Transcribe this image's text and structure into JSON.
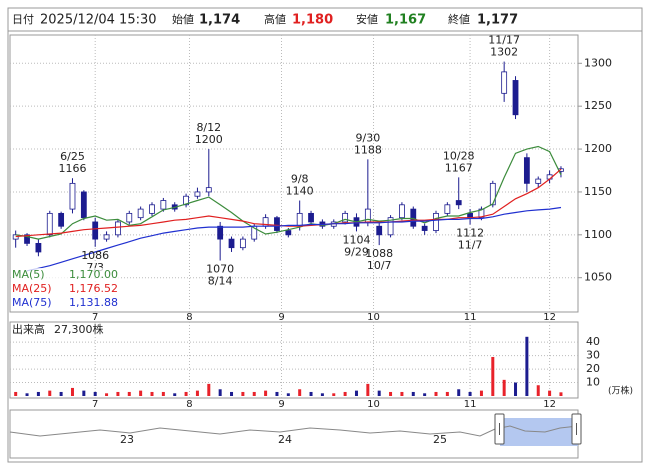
{
  "header": {
    "date_label": "日付",
    "datetime": "2025/12/04 15:30",
    "items": [
      {
        "label": "始値",
        "value": "1,174"
      },
      {
        "label": "高値",
        "value": "1,180"
      },
      {
        "label": "安値",
        "value": "1,167"
      },
      {
        "label": "終値",
        "value": "1,177"
      }
    ]
  },
  "chart_data": [
    {
      "type": "candlestick",
      "categories": [
        null,
        null,
        null,
        null,
        null,
        "6/25",
        null,
        "7/3",
        null,
        null,
        null,
        null,
        null,
        null,
        null,
        null,
        null,
        "8/12",
        "8/14",
        null,
        null,
        null,
        null,
        null,
        null,
        "9/8",
        null,
        null,
        null,
        null,
        "9/29",
        "9/30",
        "10/7",
        null,
        null,
        null,
        null,
        null,
        null,
        "10/28",
        "11/7",
        null,
        null,
        "11/17",
        null,
        null,
        null,
        null,
        null
      ],
      "open": [
        1095,
        1100,
        1090,
        1100,
        1125,
        1130,
        1150,
        1115,
        1095,
        1100,
        1115,
        1120,
        1125,
        1130,
        1135,
        1135,
        1145,
        1150,
        1110,
        1095,
        1085,
        1095,
        1110,
        1120,
        1105,
        1110,
        1125,
        1115,
        1110,
        1115,
        1120,
        1115,
        1110,
        1100,
        1120,
        1130,
        1110,
        1105,
        1125,
        1140,
        1125,
        1120,
        1135,
        1265,
        1280,
        1190,
        1160,
        1165,
        1174
      ],
      "high": [
        1105,
        1102,
        1095,
        1128,
        1127,
        1166,
        1152,
        1120,
        1104,
        1118,
        1128,
        1133,
        1138,
        1143,
        1138,
        1148,
        1155,
        1200,
        1115,
        1098,
        1098,
        1113,
        1124,
        1122,
        1108,
        1140,
        1128,
        1118,
        1118,
        1128,
        1125,
        1188,
        1115,
        1123,
        1138,
        1133,
        1113,
        1128,
        1138,
        1167,
        1130,
        1133,
        1163,
        1302,
        1285,
        1195,
        1168,
        1175,
        1180
      ],
      "low": [
        1085,
        1087,
        1075,
        1097,
        1107,
        1125,
        1117,
        1086,
        1092,
        1097,
        1112,
        1117,
        1122,
        1127,
        1127,
        1132,
        1142,
        1145,
        1070,
        1080,
        1082,
        1092,
        1107,
        1102,
        1097,
        1105,
        1112,
        1107,
        1107,
        1112,
        1104,
        1110,
        1088,
        1097,
        1117,
        1107,
        1100,
        1102,
        1122,
        1130,
        1112,
        1117,
        1132,
        1255,
        1235,
        1150,
        1155,
        1160,
        1167
      ],
      "close": [
        1100,
        1090,
        1080,
        1125,
        1110,
        1160,
        1120,
        1095,
        1100,
        1115,
        1125,
        1130,
        1135,
        1140,
        1130,
        1145,
        1150,
        1155,
        1095,
        1085,
        1095,
        1110,
        1120,
        1105,
        1100,
        1125,
        1115,
        1110,
        1115,
        1125,
        1110,
        1130,
        1100,
        1120,
        1135,
        1110,
        1105,
        1125,
        1135,
        1135,
        1120,
        1130,
        1160,
        1290,
        1240,
        1160,
        1165,
        1170,
        1177
      ],
      "up_color": "#ffffff",
      "down_color": "#1c1c8f",
      "wick_color": "#1c1c8f",
      "series": [
        {
          "name": "MA(5)",
          "color": "#3c8c3c",
          "legend_value": "1,170.00",
          "values": [
            1100,
            1098,
            1095,
            1098,
            1101,
            1113,
            1119,
            1122,
            1117,
            1118,
            1111,
            1113,
            1121,
            1129,
            1132,
            1136,
            1140,
            1144,
            1135,
            1126,
            1116,
            1108,
            1101,
            1103,
            1106,
            1109,
            1113,
            1111,
            1113,
            1118,
            1115,
            1118,
            1116,
            1117,
            1119,
            1119,
            1114,
            1119,
            1122,
            1122,
            1126,
            1129,
            1136,
            1167,
            1195,
            1200,
            1203,
            1197,
            1170
          ]
        },
        {
          "name": "MA(25)",
          "color": "#e02020",
          "legend_value": "1,176.52",
          "values": [
            1098,
            1099,
            1100,
            1101,
            1102,
            1104,
            1106,
            1107,
            1108,
            1109,
            1110,
            1111,
            1113,
            1115,
            1117,
            1118,
            1120,
            1122,
            1120,
            1118,
            1116,
            1113,
            1112,
            1111,
            1110,
            1110,
            1111,
            1112,
            1113,
            1114,
            1114,
            1115,
            1115,
            1115,
            1116,
            1117,
            1117,
            1118,
            1118,
            1120,
            1120,
            1121,
            1124,
            1133,
            1142,
            1148,
            1155,
            1165,
            1176.52
          ]
        },
        {
          "name": "MA(75)",
          "color": "#2030d0",
          "legend_value": "1,131.88",
          "values": [
            null,
            1058,
            1061,
            1064,
            1068,
            1072,
            1076,
            1080,
            1084,
            1088,
            1092,
            1096,
            1099,
            1102,
            1104,
            1106,
            1108,
            1109,
            1109,
            1109,
            1109,
            1110,
            1110,
            1110,
            1111,
            1111,
            1112,
            1112,
            1113,
            1113,
            1114,
            1114,
            1114,
            1115,
            1115,
            1116,
            1116,
            1117,
            1118,
            1118,
            1119,
            1119,
            1121,
            1124,
            1126,
            1128,
            1129,
            1130,
            1131.88
          ]
        }
      ],
      "legend": "lower left",
      "ylim": [
        1010,
        1333
      ],
      "yticks": [
        1050,
        1100,
        1150,
        1200,
        1250,
        1300
      ],
      "xlim": [
        -0.5,
        49.5
      ],
      "xticks": [
        7,
        {
          "value": 15.3,
          "label": "8"
        },
        {
          "value": 23.4,
          "label": "9"
        },
        {
          "value": 31.5,
          "label": "10"
        },
        {
          "value": 40,
          "label": "11"
        },
        {
          "value": 47,
          "label": "12"
        }
      ],
      "grid": true
    },
    {
      "type": "bar",
      "title": "出来高",
      "subtitle": "27,300株",
      "unit_label": "(万株)",
      "values": [
        3,
        2,
        3,
        4,
        3,
        6,
        4,
        3,
        2,
        3,
        3,
        4,
        3,
        3,
        2,
        3,
        4,
        9,
        5,
        3,
        3,
        3,
        4,
        3,
        2,
        5,
        3,
        2,
        2,
        3,
        4,
        9,
        4,
        3,
        3,
        3,
        2,
        3,
        3,
        5,
        3,
        4,
        29,
        12,
        10,
        44,
        8,
        4,
        2.73
      ],
      "up_color": "#e8222a",
      "down_color": "#1c1c8f",
      "ylim": [
        0,
        55
      ],
      "yticks": [
        10,
        20,
        30,
        40
      ],
      "grid": true
    }
  ],
  "navigator": {
    "labels": [
      "23",
      "24",
      "25"
    ]
  }
}
